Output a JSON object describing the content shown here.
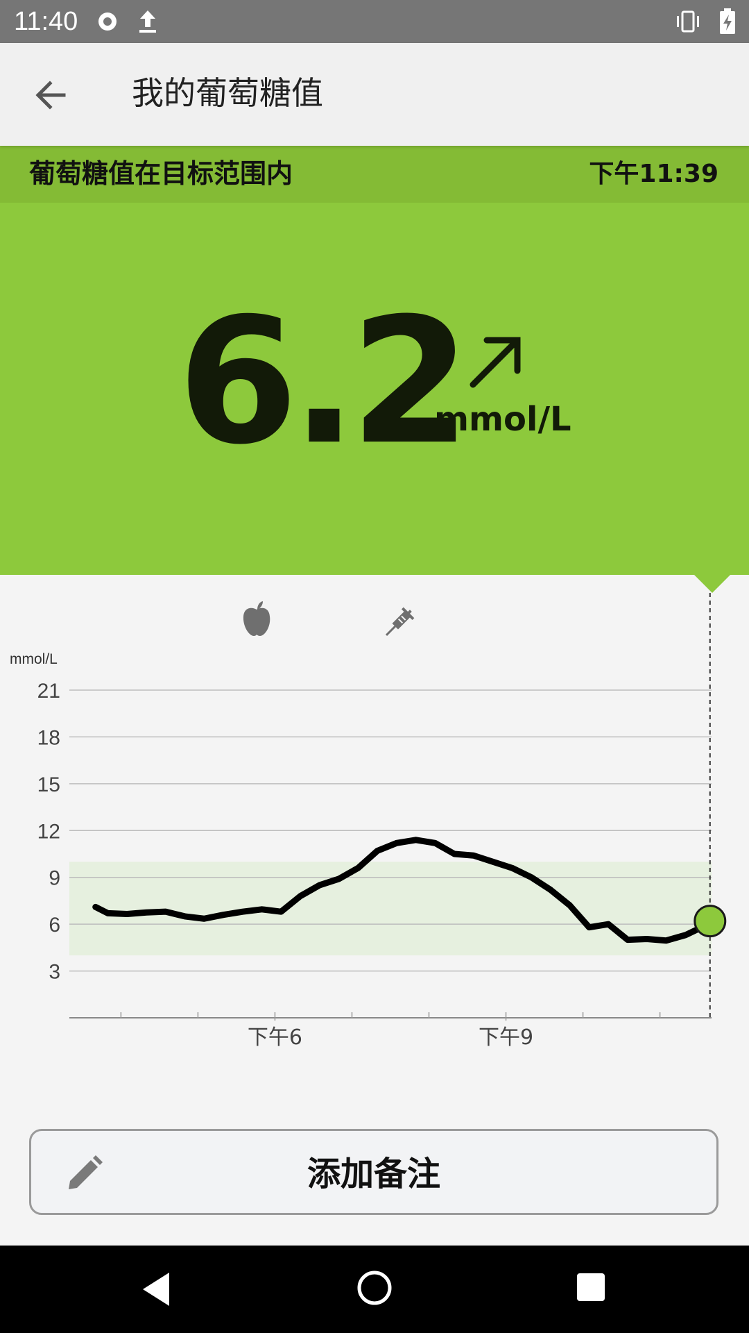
{
  "status_bar": {
    "time": "11:40",
    "icons": [
      "record-icon",
      "upload-icon",
      "vibrate-icon",
      "battery-charging-icon"
    ]
  },
  "app_bar": {
    "title": "我的葡萄糖值",
    "back_icon": "arrow-left-icon"
  },
  "range_status": {
    "text": "葡萄糖值在目标范围内",
    "time": "下午11:39"
  },
  "reading": {
    "value": "6.2",
    "unit": "mmol/L",
    "trend_icon": "arrow-up-right-icon"
  },
  "colors": {
    "strip": "#84bb35",
    "panel": "#8dc93c",
    "target_band": "#e6f0df",
    "line": "#000000",
    "current_point": "#8dc93c"
  },
  "chart_data": {
    "type": "line",
    "y_unit_label": "mmol/L",
    "y_ticks": [
      3,
      6,
      9,
      12,
      15,
      18,
      21
    ],
    "ylim": [
      0,
      21
    ],
    "x_tick_labels": [
      "下午6",
      "下午9"
    ],
    "target_range": [
      4,
      10
    ],
    "events": [
      {
        "icon": "apple-icon",
        "time_h": 18.0
      },
      {
        "icon": "syringe-icon",
        "time_h": 19.75
      }
    ],
    "series": [
      {
        "x": [
          15.67,
          15.83,
          16.08,
          16.33,
          16.58,
          16.83,
          17.08,
          17.33,
          17.58,
          17.83,
          18.08,
          18.33,
          18.58,
          18.83,
          19.08,
          19.33,
          19.58,
          19.83,
          20.08,
          20.33,
          20.58,
          20.83,
          21.08,
          21.33,
          21.58,
          21.83,
          22.08,
          22.33,
          22.58,
          22.83,
          23.08,
          23.33,
          23.5,
          23.65
        ],
        "y": [
          7.1,
          6.7,
          6.65,
          6.75,
          6.8,
          6.5,
          6.35,
          6.6,
          6.8,
          6.95,
          6.8,
          7.8,
          8.5,
          8.9,
          9.6,
          10.7,
          11.2,
          11.4,
          11.2,
          10.5,
          10.4,
          10.0,
          9.6,
          9.0,
          8.2,
          7.2,
          5.8,
          6.0,
          5.0,
          5.05,
          4.95,
          5.3,
          5.7,
          6.2
        ]
      }
    ],
    "current": {
      "time": "下午11:39",
      "value": 6.2
    }
  },
  "add_note": {
    "label": "添加备注",
    "icon": "pencil-icon"
  },
  "nav_bar": {
    "buttons": [
      "back-triangle-icon",
      "home-circle-icon",
      "recents-square-icon"
    ]
  }
}
